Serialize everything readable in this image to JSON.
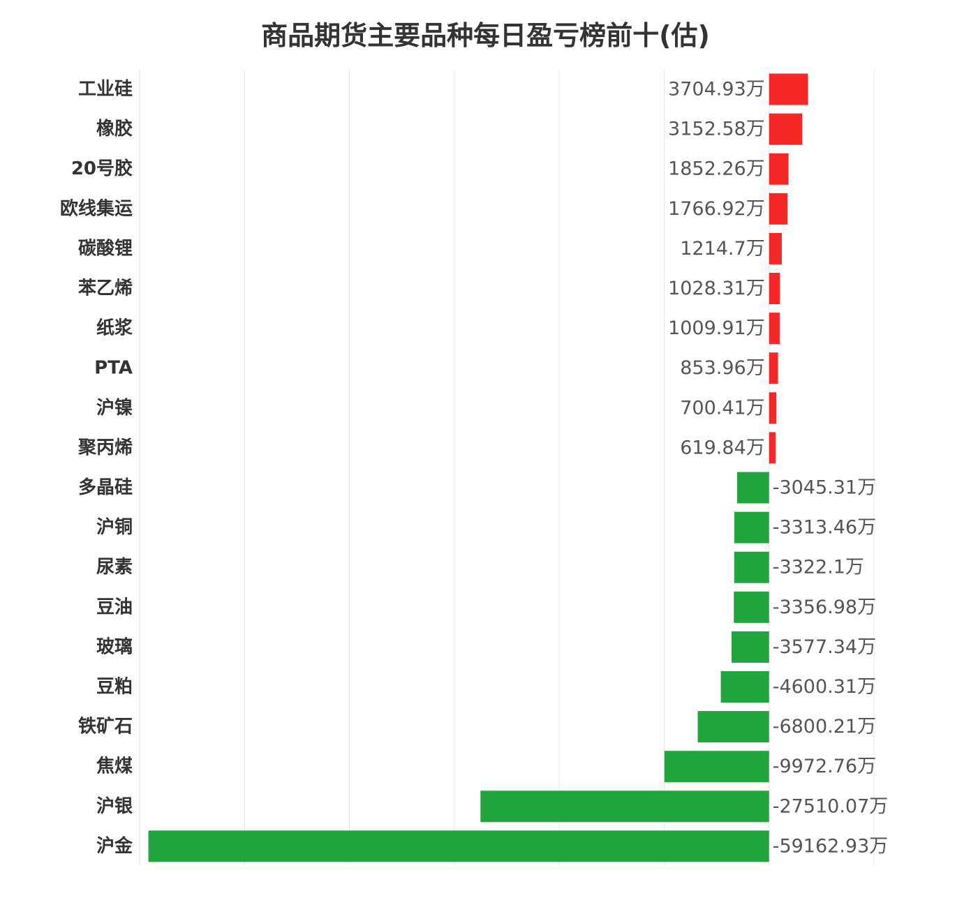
{
  "chart_data": {
    "type": "bar",
    "orientation": "horizontal",
    "title": "商品期货主要品种每日盈亏榜前十(估)",
    "unit": "万",
    "grid": true,
    "categories": [
      "工业硅",
      "橡胶",
      "20号胶",
      "欧线集运",
      "碳酸锂",
      "苯乙烯",
      "纸浆",
      "PTA",
      "沪镍",
      "聚丙烯",
      "多晶硅",
      "沪铜",
      "尿素",
      "豆油",
      "玻璃",
      "豆粕",
      "铁矿石",
      "焦煤",
      "沪银",
      "沪金"
    ],
    "values": [
      3704.93,
      3152.58,
      1852.26,
      1766.92,
      1214.7,
      1028.31,
      1009.91,
      853.96,
      700.41,
      619.84,
      -3045.31,
      -3313.46,
      -3322.1,
      -3356.98,
      -3577.34,
      -4600.31,
      -6800.21,
      -9972.76,
      -27510.07,
      -59162.93
    ],
    "value_labels": [
      "3704.93万",
      "3152.58万",
      "1852.26万",
      "1766.92万",
      "1214.7万",
      "1028.31万",
      "1009.91万",
      "853.96万",
      "700.41万",
      "619.84万",
      "-3045.31万",
      "-3313.46万",
      "-3322.1万",
      "-3356.98万",
      "-3577.34万",
      "-4600.31万",
      "-6800.21万",
      "-9972.76万",
      "-27510.07万",
      "-59162.93万"
    ],
    "xlim": [
      -60000,
      10000
    ],
    "colors": {
      "positive": "#f52727",
      "negative": "#21a33d",
      "grid": "#e6e6e6"
    }
  }
}
